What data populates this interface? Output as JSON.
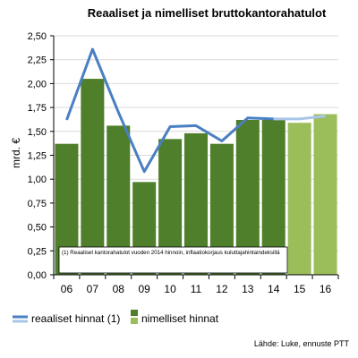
{
  "chart_data": {
    "type": "bar",
    "title": "Reaaliset ja nimelliset bruttokantorahatulot",
    "ylabel": "mrd. €",
    "xlabel": "",
    "ylim": [
      0,
      2.5
    ],
    "y_ticks": [
      "0,00",
      "0,25",
      "0,50",
      "0,75",
      "1,00",
      "1,25",
      "1,50",
      "1,75",
      "2,00",
      "2,25",
      "2,50"
    ],
    "categories": [
      "06",
      "07",
      "08",
      "09",
      "10",
      "11",
      "12",
      "13",
      "14",
      "15",
      "16"
    ],
    "grid": true,
    "legend_position": "bottom",
    "series": [
      {
        "name": "nimelliset hinnat",
        "kind": "bar",
        "values": [
          1.37,
          2.05,
          1.56,
          0.97,
          1.42,
          1.48,
          1.37,
          1.62,
          1.62,
          1.59,
          1.68
        ],
        "forecast_from_index": 9
      },
      {
        "name": "reaaliset hinnat (1)",
        "kind": "line",
        "values": [
          1.62,
          2.36,
          1.7,
          1.08,
          1.55,
          1.56,
          1.4,
          1.64,
          1.63,
          1.63,
          1.66
        ],
        "forecast_from_index": 8
      }
    ],
    "colors": {
      "bar": "#4f7f2b",
      "bar_forecast": "#9bbd5a",
      "line": "#4a7fc1",
      "line_forecast": "#a9c6e8",
      "grid": "#d9d9d9"
    },
    "annotation": "(1) Reaaliset kantorahatulot vuoden 2014 hinnoin, inflaatiokorjaus kuluttajahintaindeksillä",
    "source": "Lähde: Luke, ennuste PTT"
  }
}
